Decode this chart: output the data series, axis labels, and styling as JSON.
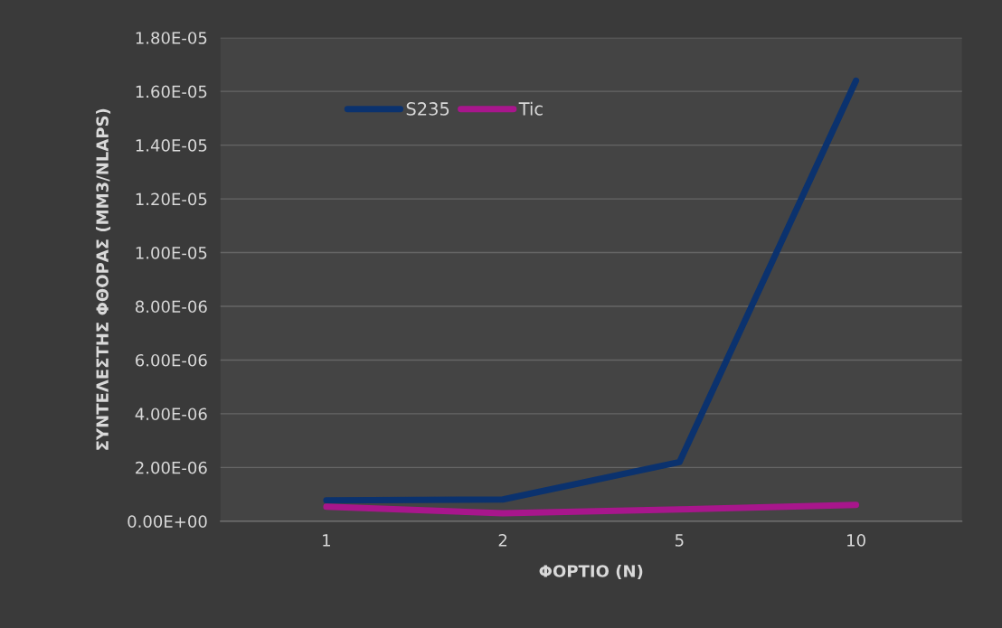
{
  "chart_data": {
    "type": "line",
    "xlabel": "ΦΟΡΤΙΟ (N)",
    "ylabel": "ΣΥΝΤΕΛΕΣΤΗΣ ΦΘΟΡΑΣ (MM3/NLAPS)",
    "categories": [
      "1",
      "2",
      "5",
      "10"
    ],
    "series": [
      {
        "name": "S235",
        "color": "#0b326e",
        "values": [
          7.8e-07,
          8.1e-07,
          2.2e-06,
          1.64e-05
        ]
      },
      {
        "name": "Tic",
        "color": "#a8168c",
        "values": [
          5.4e-07,
          3e-07,
          4.4e-07,
          6.1e-07
        ]
      }
    ],
    "ylim": [
      0,
      1.8e-05
    ],
    "yticks": [
      {
        "value": 0,
        "label": "0.00E+00"
      },
      {
        "value": 2e-06,
        "label": "2.00E-06"
      },
      {
        "value": 4e-06,
        "label": "4.00E-06"
      },
      {
        "value": 6e-06,
        "label": "6.00E-06"
      },
      {
        "value": 8e-06,
        "label": "8.00E-06"
      },
      {
        "value": 1e-05,
        "label": "1.00E-05"
      },
      {
        "value": 1.2e-05,
        "label": "1.20E-05"
      },
      {
        "value": 1.4e-05,
        "label": "1.40E-05"
      },
      {
        "value": 1.6e-05,
        "label": "1.60E-05"
      },
      {
        "value": 1.8e-05,
        "label": "1.80E-05"
      }
    ],
    "grid": "y",
    "legend": "top left",
    "marker": "none",
    "line_style": "solid"
  }
}
